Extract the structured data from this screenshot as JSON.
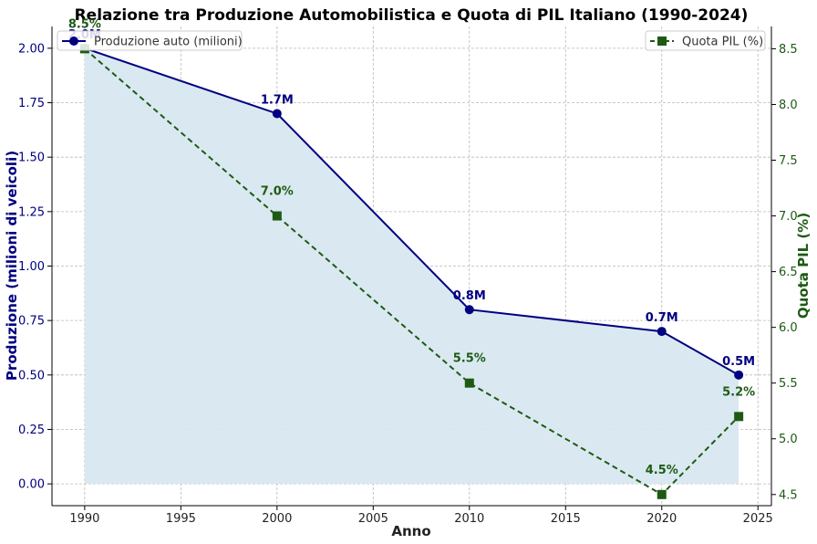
{
  "chart_data": {
    "type": "line",
    "title": "Relazione tra Produzione Automobilistica e Quota di PIL Italiano (1990-2024)",
    "xlabel": "Anno",
    "ylabel_left": "Produzione (milioni di veicoli)",
    "ylabel_right": "Quota PIL (%)",
    "x": [
      1990,
      2000,
      2010,
      2020,
      2024
    ],
    "xlim": [
      1988.3,
      2025.7
    ],
    "xticks": [
      "1990",
      "1995",
      "2000",
      "2005",
      "2010",
      "2015",
      "2020",
      "2025"
    ],
    "ylim_left": [
      -0.1,
      2.1
    ],
    "yticks_left": [
      "0.00",
      "0.25",
      "0.50",
      "0.75",
      "1.00",
      "1.25",
      "1.50",
      "1.75",
      "2.00"
    ],
    "ylim_right": [
      4.4,
      8.7
    ],
    "yticks_right": [
      "4.5",
      "5.0",
      "5.5",
      "6.0",
      "6.5",
      "7.0",
      "7.5",
      "8.0",
      "8.5"
    ],
    "grid": true,
    "series": [
      {
        "name": "Produzione auto (milioni)",
        "axis": "left",
        "values": [
          2.0,
          1.7,
          0.8,
          0.7,
          0.5
        ],
        "labels": [
          "2.0M",
          "1.7M",
          "0.8M",
          "0.7M",
          "0.5M"
        ],
        "color": "#000080",
        "fill_color": "#d8e8f0",
        "marker": "circle",
        "linestyle": "solid",
        "legend_position": "top-left"
      },
      {
        "name": "Quota PIL (%)",
        "axis": "right",
        "values": [
          8.5,
          7.0,
          5.5,
          4.5,
          5.2
        ],
        "labels": [
          "8.5%",
          "7.0%",
          "5.5%",
          "4.5%",
          "5.2%"
        ],
        "color": "#1e5a14",
        "marker": "square",
        "linestyle": "dashed",
        "legend_position": "top-right"
      }
    ]
  }
}
